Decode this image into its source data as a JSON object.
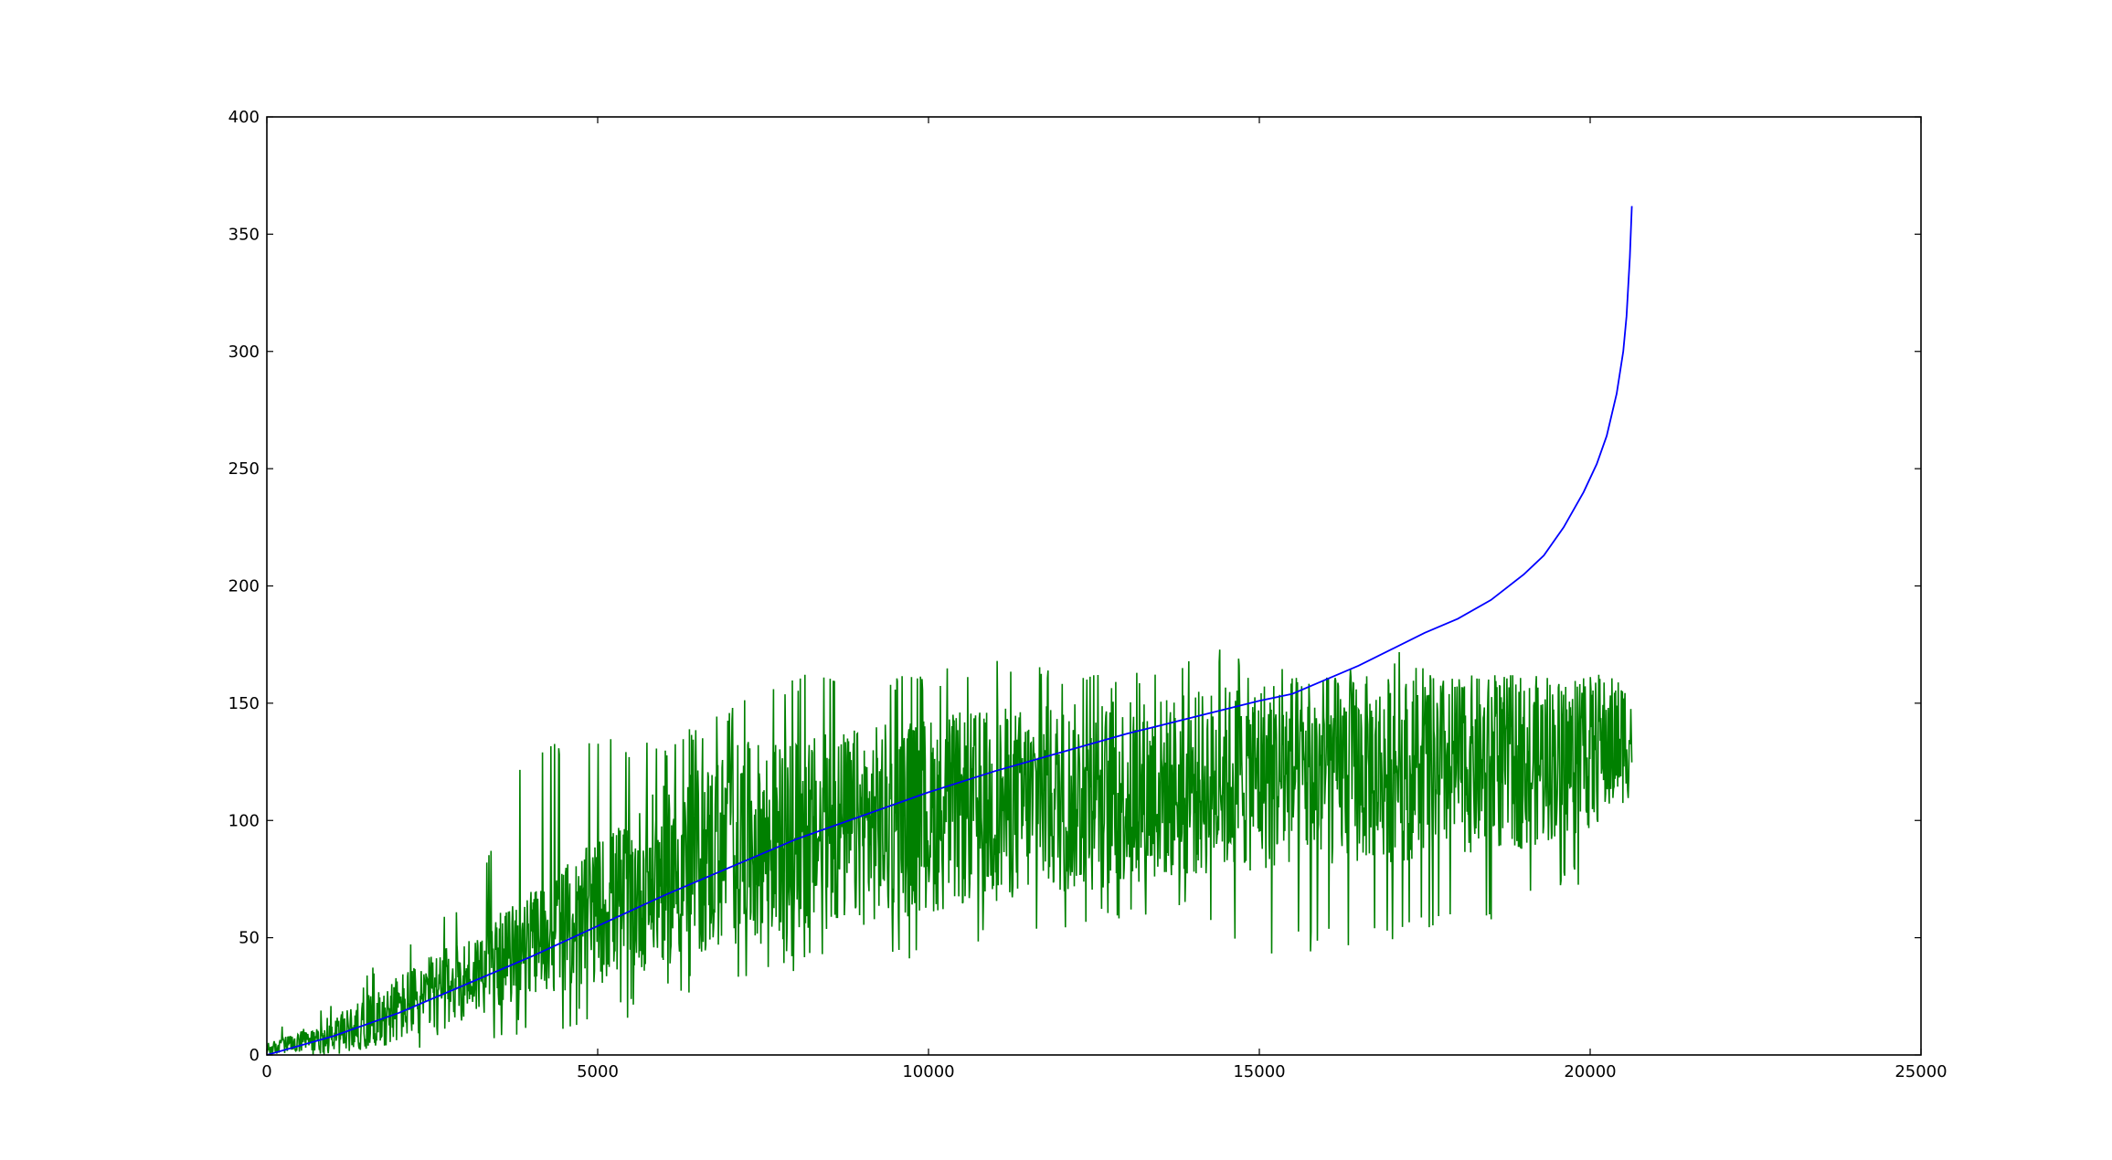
{
  "chart_data": {
    "type": "line",
    "title": "",
    "xlabel": "",
    "ylabel": "",
    "xlim": [
      0,
      25000
    ],
    "ylim": [
      0,
      400
    ],
    "grid": false,
    "legend": "none",
    "x_ticks": [
      "0",
      "5000",
      "10000",
      "15000",
      "20000",
      "25000"
    ],
    "y_ticks": [
      "0",
      "50",
      "100",
      "150",
      "200",
      "250",
      "300",
      "350",
      "400"
    ],
    "series": [
      {
        "color": "#0000ff",
        "style": "smooth",
        "x": [
          0,
          1000,
          2000,
          3000,
          4000,
          5000,
          6000,
          7000,
          8000,
          9000,
          10000,
          11000,
          12000,
          13000,
          14000,
          15000,
          15500,
          16000,
          16500,
          17000,
          17500,
          18000,
          18500,
          19000,
          19300,
          19600,
          19900,
          20100,
          20250,
          20400,
          20500,
          20550,
          20600,
          20630
        ],
        "y": [
          0,
          8,
          18,
          30,
          42,
          55,
          68,
          80,
          92,
          102,
          112,
          121,
          129,
          137,
          144,
          151,
          154,
          160,
          166,
          173,
          180,
          186,
          194,
          205,
          213,
          225,
          240,
          252,
          264,
          282,
          300,
          315,
          340,
          362
        ]
      },
      {
        "color": "#008000",
        "style": "noisy-band",
        "x": [
          0,
          1000,
          2000,
          3000,
          4000,
          5000,
          6000,
          7000,
          8000,
          9000,
          10000,
          11000,
          12000,
          13000,
          14000,
          15000,
          16000,
          17000,
          18000,
          19000,
          20000,
          20630
        ],
        "y_low": [
          0,
          0,
          5,
          15,
          25,
          30,
          38,
          45,
          50,
          55,
          60,
          65,
          68,
          72,
          75,
          78,
          80,
          82,
          85,
          88,
          95,
          110
        ],
        "y_high": [
          5,
          15,
          35,
          50,
          70,
          92,
          115,
          133,
          135,
          140,
          145,
          148,
          150,
          152,
          155,
          162,
          162,
          162,
          162,
          162,
          162,
          162
        ],
        "y_spike_min": [
          0,
          0,
          0,
          3,
          10,
          12,
          20,
          30,
          35,
          38,
          40,
          45,
          50,
          55,
          58,
          40,
          45,
          48,
          52,
          60,
          75,
          105
        ],
        "y_spike_max": [
          10,
          22,
          48,
          66,
          135,
          135,
          135,
          148,
          163,
          163,
          163,
          173,
          163,
          163,
          173,
          173,
          163,
          173,
          163,
          163,
          163,
          163
        ]
      }
    ]
  }
}
